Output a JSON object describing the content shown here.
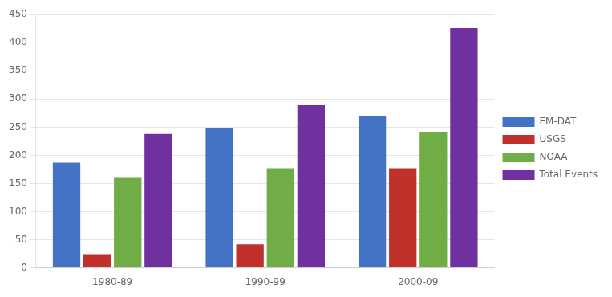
{
  "chart_data": {
    "type": "bar",
    "categories": [
      "1980-89",
      "1990-99",
      "2000-09"
    ],
    "series": [
      {
        "name": "EM-DAT",
        "color": "#4472C4",
        "values": [
          187,
          248,
          269
        ]
      },
      {
        "name": "USGS",
        "color": "#C0312B",
        "values": [
          23,
          42,
          177
        ]
      },
      {
        "name": "NOAA",
        "color": "#70AD47",
        "values": [
          160,
          177,
          242
        ]
      },
      {
        "name": "Total Events",
        "color": "#7030A0",
        "values": [
          238,
          289,
          426
        ]
      }
    ],
    "ylim": [
      0,
      450
    ],
    "yticks": [
      0,
      50,
      100,
      150,
      200,
      250,
      300,
      350,
      400,
      450
    ],
    "grid": true,
    "legend": "right"
  }
}
